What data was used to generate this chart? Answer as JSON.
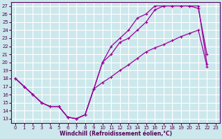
{
  "xlabel": "Windchill (Refroidissement éolien,°C)",
  "bg_color": "#cce8ec",
  "grid_color": "#ffffff",
  "line_color": "#990099",
  "xlim": [
    -0.5,
    23.5
  ],
  "ylim": [
    12.5,
    27.5
  ],
  "xticks": [
    0,
    1,
    2,
    3,
    4,
    5,
    6,
    7,
    8,
    9,
    10,
    11,
    12,
    13,
    14,
    15,
    16,
    17,
    18,
    19,
    20,
    21,
    22,
    23
  ],
  "yticks": [
    13,
    14,
    15,
    16,
    17,
    18,
    19,
    20,
    21,
    22,
    23,
    24,
    25,
    26,
    27
  ],
  "line1_x": [
    0,
    1,
    2,
    3,
    4,
    5,
    6,
    7,
    8,
    9,
    10,
    11,
    12,
    13,
    14,
    15,
    16,
    17,
    18,
    19,
    20,
    21,
    22
  ],
  "line1_y": [
    18,
    17,
    16,
    15,
    14.5,
    14.5,
    13.2,
    13,
    13.5,
    16.7,
    17.5,
    18.2,
    19.0,
    19.7,
    20.5,
    21.3,
    21.8,
    22.2,
    22.7,
    23.2,
    23.6,
    24.0,
    19.5
  ],
  "line2_x": [
    0,
    1,
    2,
    3,
    4,
    5,
    6,
    7,
    8,
    9,
    10,
    11,
    12,
    13,
    14,
    15,
    16,
    17,
    18,
    19,
    20,
    21,
    22
  ],
  "line2_y": [
    18,
    17,
    16,
    15,
    14.5,
    14.5,
    13.2,
    13,
    13.5,
    16.7,
    20,
    21,
    22.5,
    23,
    24,
    25,
    26.5,
    27,
    27,
    27,
    27,
    26.7,
    21
  ],
  "line3_x": [
    0,
    1,
    2,
    3,
    4,
    5,
    6,
    7,
    8,
    9,
    10,
    11,
    12,
    13,
    14,
    15,
    16,
    17,
    18,
    19,
    20,
    21,
    22
  ],
  "line3_y": [
    18,
    17,
    16,
    15,
    14.5,
    14.5,
    13.2,
    13,
    13.5,
    16.7,
    20,
    22,
    23,
    24,
    25.5,
    26,
    27,
    27,
    27,
    27,
    27,
    27,
    19.8
  ]
}
